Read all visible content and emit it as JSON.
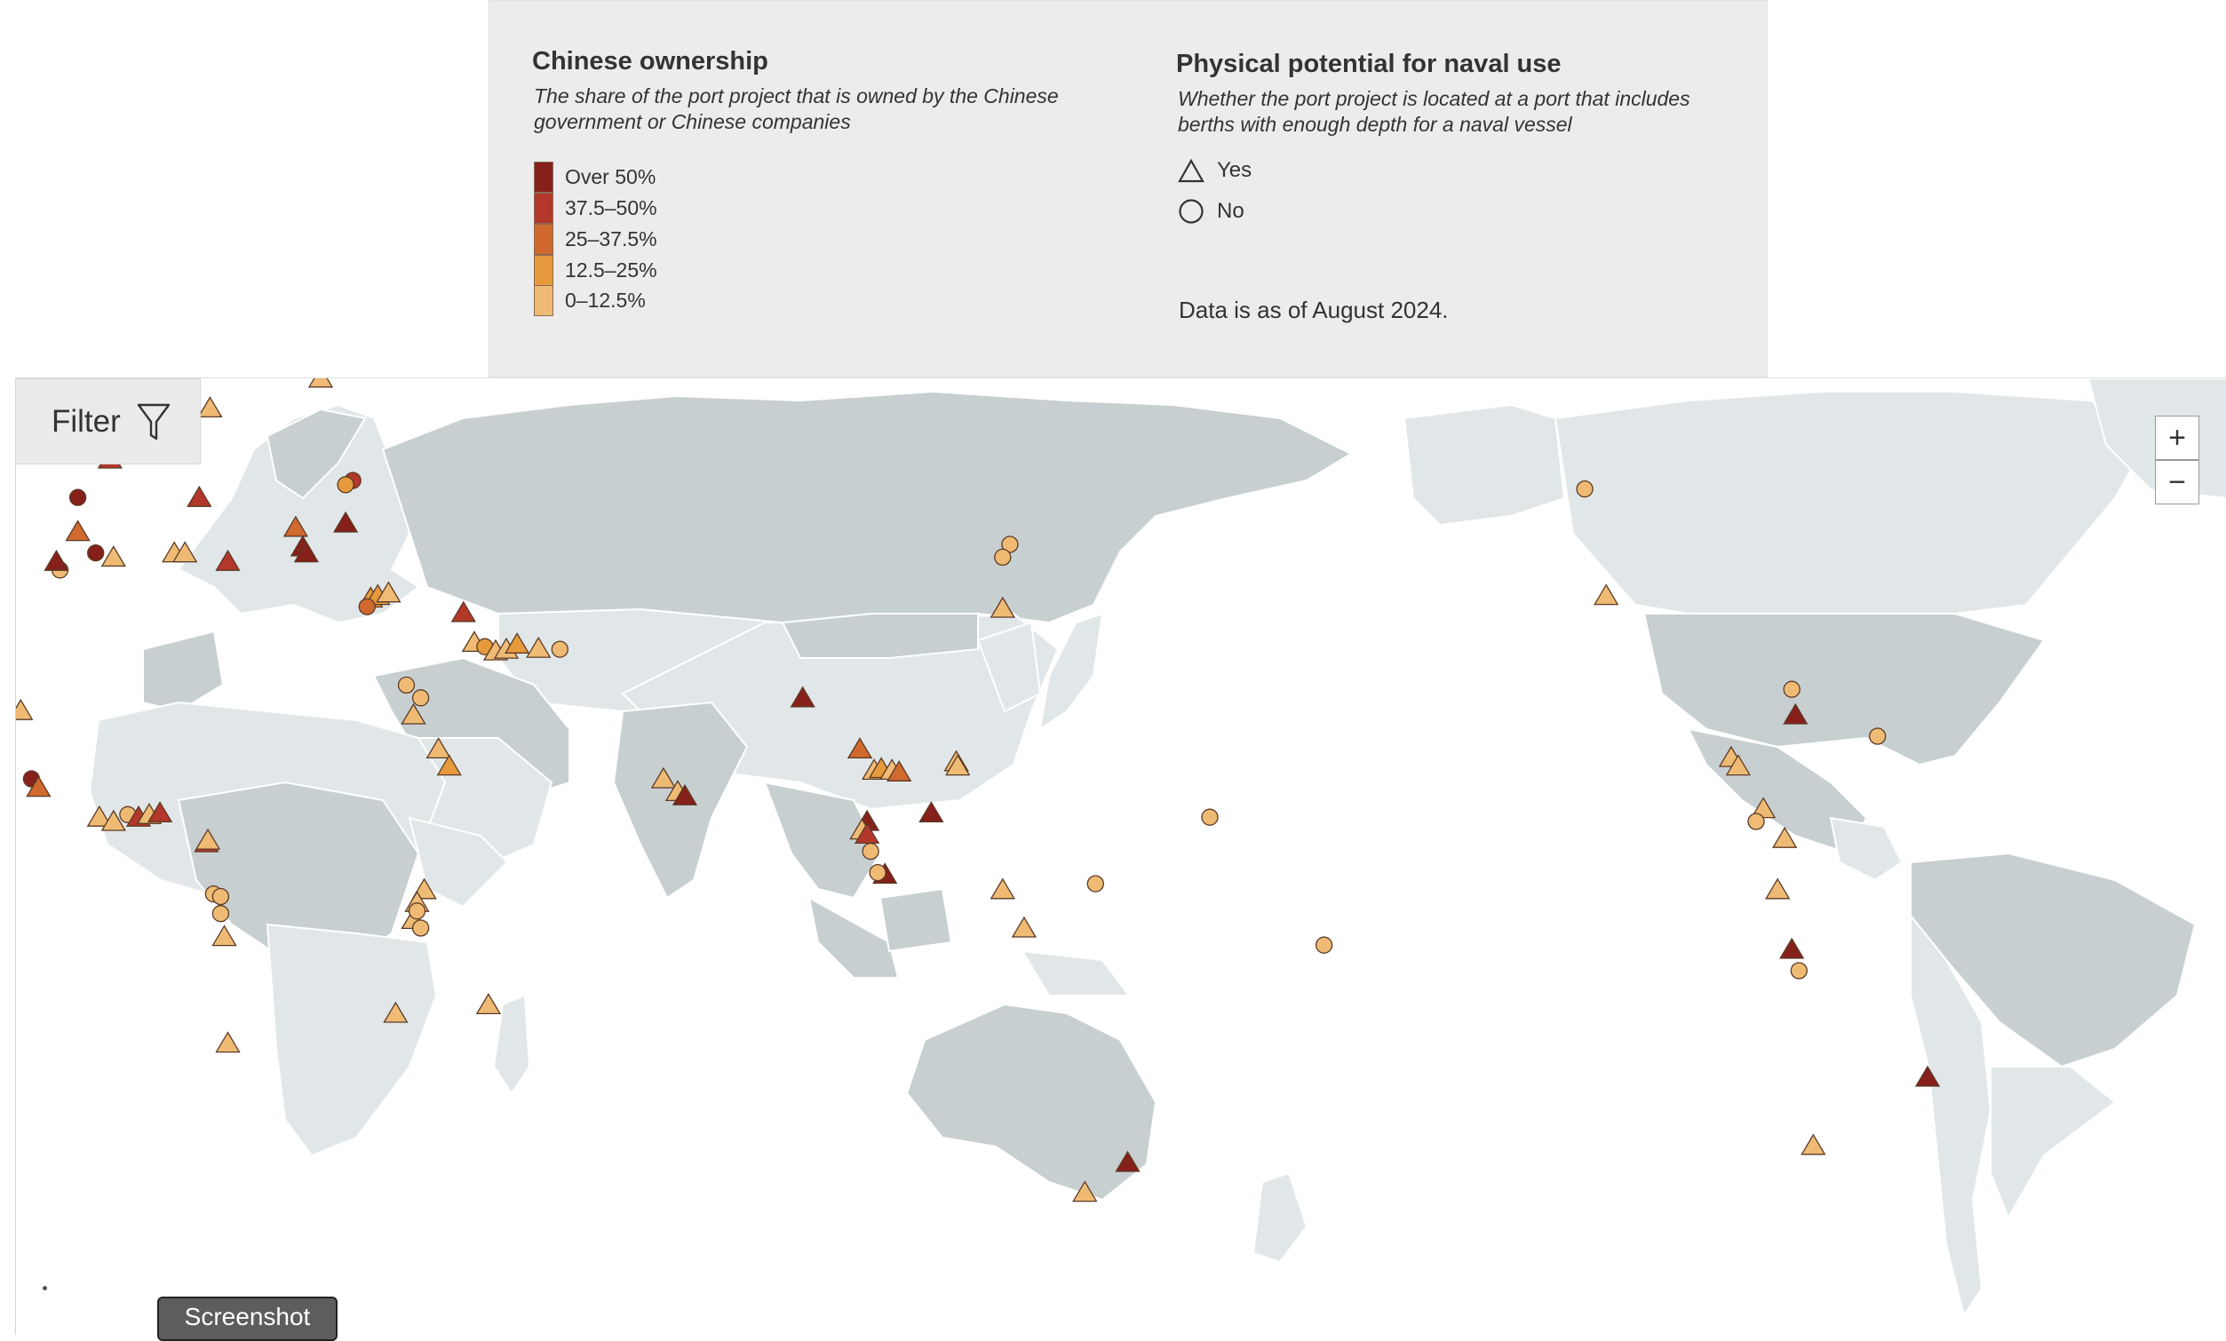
{
  "legend": {
    "ownership_title": "Chinese ownership",
    "ownership_subtitle": "The share of the port project that is owned by the Chinese government or Chinese companies",
    "categories": [
      {
        "label": "Over 50%",
        "color": "#86201a"
      },
      {
        "label": "37.5–50%",
        "color": "#b3372a"
      },
      {
        "label": "25–37.5%",
        "color": "#d0692e"
      },
      {
        "label": "12.5–25%",
        "color": "#e69a3c"
      },
      {
        "label": "0–12.5%",
        "color": "#efbb74"
      }
    ],
    "naval_title": "Physical potential for naval use",
    "naval_subtitle": "Whether the port project is located at a port that includes berths with enough depth for a naval vessel",
    "naval_yes": "Yes",
    "naval_no": "No",
    "data_note": "Data is as of August 2024."
  },
  "controls": {
    "filter_label": "Filter",
    "filter_icon": "funnel-icon",
    "zoom_in_label": "+",
    "zoom_out_label": "−",
    "screenshot_label": "Screenshot"
  },
  "markers": [
    {
      "lon": 25,
      "lat": 57,
      "shape": "triangle",
      "ownership": 4
    },
    {
      "lon": 4.5,
      "lat": 52,
      "shape": "triangle",
      "ownership": 0
    },
    {
      "lon": 3.5,
      "lat": 51.3,
      "shape": "triangle",
      "ownership": 2
    },
    {
      "lon": 2,
      "lat": 51,
      "shape": "triangle",
      "ownership": 0
    },
    {
      "lon": 0,
      "lat": 49.7,
      "shape": "triangle",
      "ownership": 1
    },
    {
      "lon": -4.5,
      "lat": 47.5,
      "shape": "triangle",
      "ownership": 1
    },
    {
      "lon": 9.5,
      "lat": 53.5,
      "shape": "triangle",
      "ownership": 4
    },
    {
      "lon": -9,
      "lat": 43,
      "shape": "circle",
      "ownership": 0
    },
    {
      "lon": -6.5,
      "lat": 36.5,
      "shape": "circle",
      "ownership": 0
    },
    {
      "lon": 8,
      "lat": 43,
      "shape": "triangle",
      "ownership": 1
    },
    {
      "lon": -9,
      "lat": 39,
      "shape": "triangle",
      "ownership": 2
    },
    {
      "lon": -4,
      "lat": 36,
      "shape": "triangle",
      "ownership": 4
    },
    {
      "lon": -11.5,
      "lat": 34.5,
      "shape": "circle",
      "ownership": 4
    },
    {
      "lon": -12,
      "lat": 35.5,
      "shape": "triangle",
      "ownership": 0
    },
    {
      "lon": 4.5,
      "lat": 36.5,
      "shape": "triangle",
      "ownership": 4
    },
    {
      "lon": 6,
      "lat": 36.5,
      "shape": "triangle",
      "ownership": 4
    },
    {
      "lon": 12,
      "lat": 35.5,
      "shape": "triangle",
      "ownership": 1
    },
    {
      "lon": 21.5,
      "lat": 39.5,
      "shape": "triangle",
      "ownership": 2
    },
    {
      "lon": 22.5,
      "lat": 37.2,
      "shape": "triangle",
      "ownership": 0
    },
    {
      "lon": 23,
      "lat": 36.5,
      "shape": "triangle",
      "ownership": 0
    },
    {
      "lon": 28.5,
      "lat": 40,
      "shape": "triangle",
      "ownership": 0
    },
    {
      "lon": 29.5,
      "lat": 45,
      "shape": "circle",
      "ownership": 1
    },
    {
      "lon": 28.5,
      "lat": 44.5,
      "shape": "circle",
      "ownership": 3
    },
    {
      "lon": 32,
      "lat": 31.2,
      "shape": "triangle",
      "ownership": 3
    },
    {
      "lon": 33,
      "lat": 31.5,
      "shape": "triangle",
      "ownership": 3
    },
    {
      "lon": 34.5,
      "lat": 31.8,
      "shape": "triangle",
      "ownership": 4
    },
    {
      "lon": 31.5,
      "lat": 30.2,
      "shape": "circle",
      "ownership": 2
    },
    {
      "lon": 45,
      "lat": 29.5,
      "shape": "triangle",
      "ownership": 1
    },
    {
      "lon": 46.5,
      "lat": 26,
      "shape": "triangle",
      "ownership": 4
    },
    {
      "lon": 48,
      "lat": 25.5,
      "shape": "circle",
      "ownership": 3
    },
    {
      "lon": 49.5,
      "lat": 25,
      "shape": "triangle",
      "ownership": 4
    },
    {
      "lon": 51,
      "lat": 25.2,
      "shape": "triangle",
      "ownership": 4
    },
    {
      "lon": 52.5,
      "lat": 25.8,
      "shape": "triangle",
      "ownership": 3
    },
    {
      "lon": 55.5,
      "lat": 25.3,
      "shape": "triangle",
      "ownership": 4
    },
    {
      "lon": 58.5,
      "lat": 25.2,
      "shape": "circle",
      "ownership": 4
    },
    {
      "lon": 37,
      "lat": 21,
      "shape": "circle",
      "ownership": 4
    },
    {
      "lon": 39,
      "lat": 19.5,
      "shape": "circle",
      "ownership": 4
    },
    {
      "lon": 38,
      "lat": 17.5,
      "shape": "triangle",
      "ownership": 4
    },
    {
      "lon": 41.5,
      "lat": 13.5,
      "shape": "triangle",
      "ownership": 4
    },
    {
      "lon": 43,
      "lat": 11.5,
      "shape": "triangle",
      "ownership": 3
    },
    {
      "lon": -17,
      "lat": 18,
      "shape": "triangle",
      "ownership": 4
    },
    {
      "lon": -15.5,
      "lat": 10,
      "shape": "circle",
      "ownership": 0
    },
    {
      "lon": -14.5,
      "lat": 9,
      "shape": "triangle",
      "ownership": 2
    },
    {
      "lon": -6,
      "lat": 5.5,
      "shape": "triangle",
      "ownership": 4
    },
    {
      "lon": -4,
      "lat": 5,
      "shape": "triangle",
      "ownership": 4
    },
    {
      "lon": -2,
      "lat": 5.8,
      "shape": "circle",
      "ownership": 4
    },
    {
      "lon": -0.5,
      "lat": 5.5,
      "shape": "triangle",
      "ownership": 1
    },
    {
      "lon": 1,
      "lat": 5.8,
      "shape": "triangle",
      "ownership": 4
    },
    {
      "lon": 2.5,
      "lat": 6,
      "shape": "triangle",
      "ownership": 1
    },
    {
      "lon": 9,
      "lat": 2.5,
      "shape": "triangle",
      "ownership": 1
    },
    {
      "lon": 9.2,
      "lat": 2.8,
      "shape": "triangle",
      "ownership": 4
    },
    {
      "lon": 10,
      "lat": -3.5,
      "shape": "circle",
      "ownership": 4
    },
    {
      "lon": 11,
      "lat": -3.8,
      "shape": "circle",
      "ownership": 4
    },
    {
      "lon": 11,
      "lat": -5.8,
      "shape": "circle",
      "ownership": 4
    },
    {
      "lon": 11.5,
      "lat": -8.5,
      "shape": "triangle",
      "ownership": 4
    },
    {
      "lon": 12,
      "lat": -21,
      "shape": "triangle",
      "ownership": 4
    },
    {
      "lon": 39.5,
      "lat": -3,
      "shape": "triangle",
      "ownership": 4
    },
    {
      "lon": 38.5,
      "lat": -4.5,
      "shape": "triangle",
      "ownership": 4
    },
    {
      "lon": 38,
      "lat": -6.5,
      "shape": "triangle",
      "ownership": 4
    },
    {
      "lon": 38.5,
      "lat": -5.5,
      "shape": "circle",
      "ownership": 4
    },
    {
      "lon": 39,
      "lat": -7.5,
      "shape": "circle",
      "ownership": 4
    },
    {
      "lon": 35.5,
      "lat": -17.5,
      "shape": "triangle",
      "ownership": 4
    },
    {
      "lon": 48.5,
      "lat": -16.5,
      "shape": "triangle",
      "ownership": 4
    },
    {
      "lon": 73,
      "lat": 10,
      "shape": "triangle",
      "ownership": 4
    },
    {
      "lon": 75,
      "lat": 8.5,
      "shape": "triangle",
      "ownership": 4
    },
    {
      "lon": 76,
      "lat": 8,
      "shape": "triangle",
      "ownership": 0
    },
    {
      "lon": 92.5,
      "lat": 19.5,
      "shape": "triangle",
      "ownership": 0
    },
    {
      "lon": 100.5,
      "lat": 13.5,
      "shape": "triangle",
      "ownership": 2
    },
    {
      "lon": 102.5,
      "lat": 11,
      "shape": "triangle",
      "ownership": 4
    },
    {
      "lon": 103.5,
      "lat": 11.2,
      "shape": "triangle",
      "ownership": 3
    },
    {
      "lon": 105,
      "lat": 11,
      "shape": "triangle",
      "ownership": 4
    },
    {
      "lon": 106,
      "lat": 10.8,
      "shape": "triangle",
      "ownership": 2
    },
    {
      "lon": 101.5,
      "lat": 5,
      "shape": "triangle",
      "ownership": 0
    },
    {
      "lon": 100.8,
      "lat": 4,
      "shape": "triangle",
      "ownership": 4
    },
    {
      "lon": 101.5,
      "lat": 3.5,
      "shape": "triangle",
      "ownership": 1
    },
    {
      "lon": 102,
      "lat": 1.5,
      "shape": "circle",
      "ownership": 4
    },
    {
      "lon": 104,
      "lat": -1.2,
      "shape": "triangle",
      "ownership": 0
    },
    {
      "lon": 103,
      "lat": -1,
      "shape": "circle",
      "ownership": 4
    },
    {
      "lon": 110.5,
      "lat": 6,
      "shape": "triangle",
      "ownership": 0
    },
    {
      "lon": 114,
      "lat": 12,
      "shape": "triangle",
      "ownership": 4
    },
    {
      "lon": 114.2,
      "lat": 11.5,
      "shape": "triangle",
      "ownership": 4
    },
    {
      "lon": 120.5,
      "lat": -3,
      "shape": "triangle",
      "ownership": 4
    },
    {
      "lon": 123.5,
      "lat": -7.5,
      "shape": "triangle",
      "ownership": 4
    },
    {
      "lon": 133.5,
      "lat": -2.3,
      "shape": "circle",
      "ownership": 4
    },
    {
      "lon": 149.5,
      "lat": 5.5,
      "shape": "circle",
      "ownership": 4
    },
    {
      "lon": 165.5,
      "lat": -9.5,
      "shape": "circle",
      "ownership": 4
    },
    {
      "lon": 121.5,
      "lat": 37.5,
      "shape": "circle",
      "ownership": 4
    },
    {
      "lon": 120.5,
      "lat": 36,
      "shape": "circle",
      "ownership": 4
    },
    {
      "lon": 120.5,
      "lat": 30,
      "shape": "triangle",
      "ownership": 4
    },
    {
      "lon": 138,
      "lat": -35,
      "shape": "triangle",
      "ownership": 0
    },
    {
      "lon": 132,
      "lat": -38.5,
      "shape": "triangle",
      "ownership": 4
    },
    {
      "lon": 202,
      "lat": 44,
      "shape": "circle",
      "ownership": 4
    },
    {
      "lon": 205,
      "lat": 31.5,
      "shape": "triangle",
      "ownership": 4
    },
    {
      "lon": 231,
      "lat": 20.5,
      "shape": "circle",
      "ownership": 4
    },
    {
      "lon": 231.5,
      "lat": 17.5,
      "shape": "triangle",
      "ownership": 0
    },
    {
      "lon": 243,
      "lat": 15,
      "shape": "circle",
      "ownership": 4
    },
    {
      "lon": 222.5,
      "lat": 12.5,
      "shape": "triangle",
      "ownership": 4
    },
    {
      "lon": 223.5,
      "lat": 11.5,
      "shape": "triangle",
      "ownership": 4
    },
    {
      "lon": 227,
      "lat": 6.5,
      "shape": "triangle",
      "ownership": 4
    },
    {
      "lon": 226,
      "lat": 5,
      "shape": "circle",
      "ownership": 4
    },
    {
      "lon": 230,
      "lat": 3,
      "shape": "triangle",
      "ownership": 4
    },
    {
      "lon": 229,
      "lat": -3,
      "shape": "triangle",
      "ownership": 4
    },
    {
      "lon": 231,
      "lat": -10,
      "shape": "triangle",
      "ownership": 0
    },
    {
      "lon": 232,
      "lat": -12.5,
      "shape": "circle",
      "ownership": 4
    },
    {
      "lon": 250,
      "lat": -25,
      "shape": "triangle",
      "ownership": 0
    },
    {
      "lon": 234,
      "lat": -33,
      "shape": "triangle",
      "ownership": 4
    }
  ]
}
